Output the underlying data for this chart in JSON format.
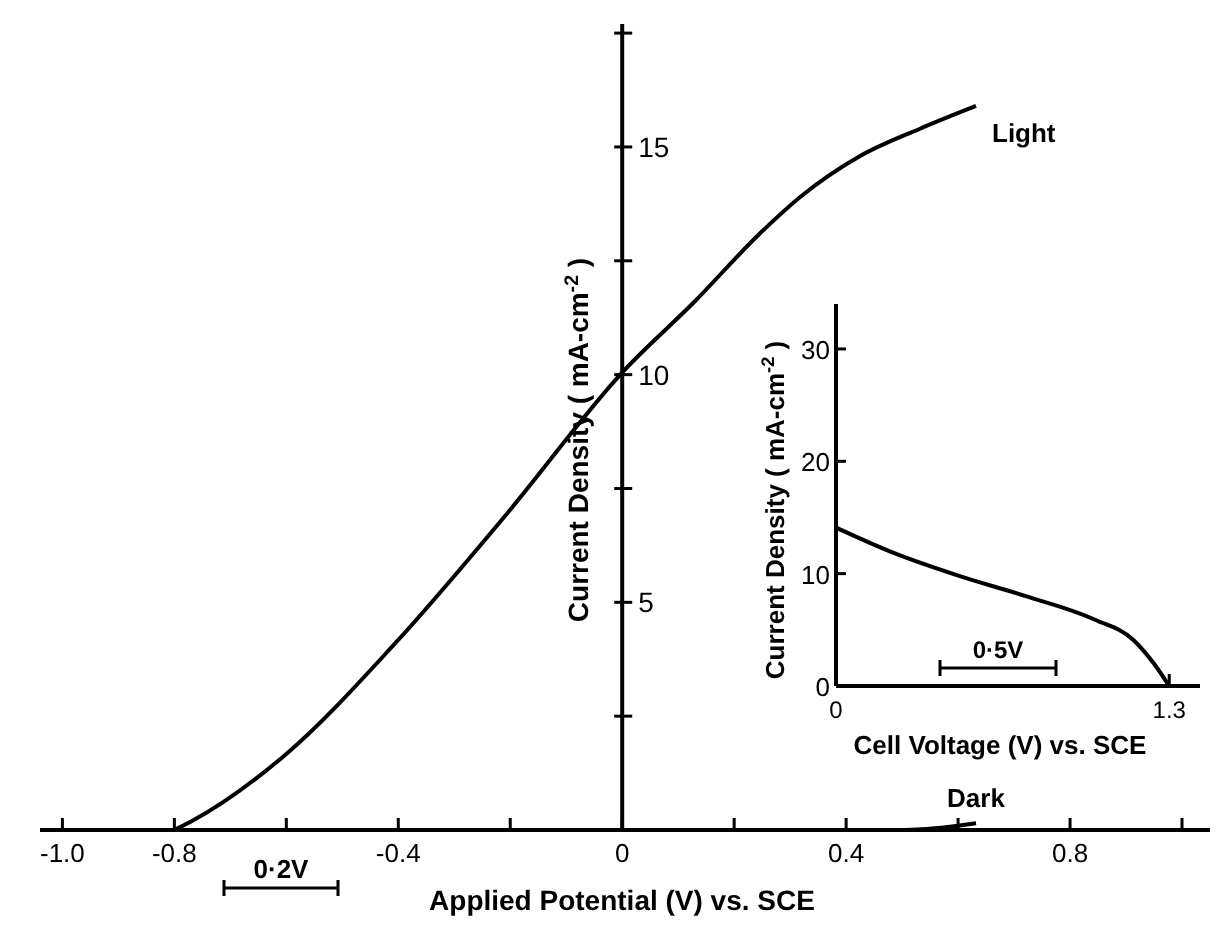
{
  "chart_data": [
    {
      "type": "line",
      "xlabel": "Applied Potential (V) vs. SCE",
      "ylabel": "Current Density ( mA-cm$^{-2}$ )",
      "xlim": [
        -1.04,
        1.05
      ],
      "ylim": [
        0,
        17.7
      ],
      "xticks": [
        {
          "value": -1.0,
          "label": "-1.0"
        },
        -0.8,
        {
          "value": -0.6,
          "label": null
        },
        -0.4,
        {
          "value": -0.2,
          "label": null
        },
        0,
        {
          "value": 0.2,
          "label": null
        },
        0.4,
        {
          "value": 0.6,
          "label": null
        },
        0.8,
        {
          "value": 1.0,
          "label": null
        }
      ],
      "yticks": [
        {
          "value": 2.5,
          "label": null
        },
        5,
        {
          "value": 7.5,
          "label": null
        },
        10,
        {
          "value": 12.5,
          "label": null
        },
        15,
        {
          "value": 17.5,
          "label": null
        }
      ],
      "series": [
        {
          "name": "Light",
          "color": "#000000",
          "x": [
            -0.8,
            -0.771,
            -0.6,
            -0.407,
            -0.207,
            0.004,
            0.129,
            0.246,
            0.318,
            0.425,
            0.532,
            0.632
          ],
          "values": [
            0,
            0.18,
            1.67,
            4.08,
            6.93,
            10.1,
            11.6,
            13.1,
            13.9,
            14.8,
            15.4,
            15.9
          ]
        },
        {
          "name": "Dark",
          "color": "#000000",
          "x": [
            0.507,
            0.57,
            0.632
          ],
          "values": [
            0,
            0.05,
            0.15
          ]
        }
      ],
      "annotations": [
        "0·2V"
      ],
      "grid": false,
      "marker": "none",
      "line_style": "solid"
    },
    {
      "type": "line",
      "xlabel": "Cell Voltage (V) vs. SCE",
      "ylabel": "Current Density ( mA-cm$^{-2}$ )",
      "xlim": [
        0,
        1.42
      ],
      "ylim": [
        0,
        34
      ],
      "xticks": [
        0,
        1.3
      ],
      "yticks": [
        0,
        10,
        20,
        30
      ],
      "series": [
        {
          "color": "#000000",
          "x": [
            0,
            0.23,
            0.48,
            0.74,
            1.01,
            1.16,
            1.24,
            1.3
          ],
          "values": [
            14.1,
            11.8,
            9.8,
            8.0,
            5.9,
            4.1,
            2.0,
            0
          ]
        }
      ],
      "annotations": [
        "0·5V"
      ],
      "grid": false,
      "marker": "none",
      "line_style": "solid"
    }
  ]
}
